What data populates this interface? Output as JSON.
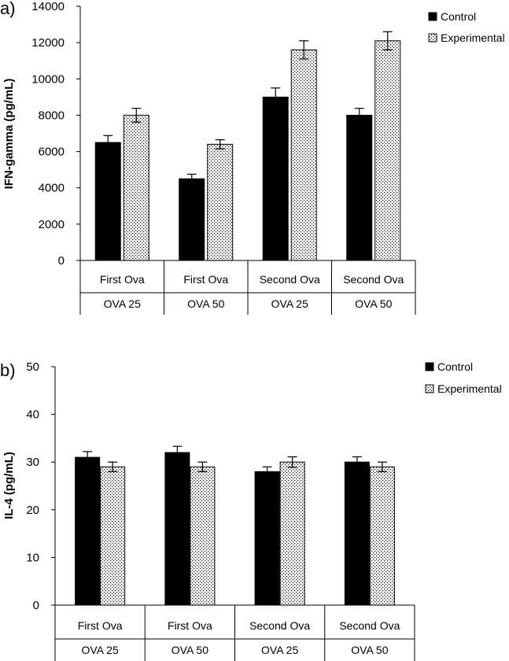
{
  "chart_data": [
    {
      "type": "bar",
      "panel_label": "a)",
      "ylabel": "IFN-gamma (pg/mL)",
      "ylim": [
        0,
        14000
      ],
      "yticks": [
        0,
        2000,
        4000,
        6000,
        8000,
        10000,
        12000,
        14000
      ],
      "categories": [
        [
          "First Ova",
          "OVA 25"
        ],
        [
          "First Ova",
          "OVA 50"
        ],
        [
          "Second Ova",
          "OVA 25"
        ],
        [
          "Second Ova",
          "OVA 50"
        ]
      ],
      "series": [
        {
          "name": "Control",
          "values": [
            6500,
            4500,
            9000,
            8000
          ],
          "errors": [
            380,
            250,
            500,
            380
          ],
          "fill": "#000000"
        },
        {
          "name": "Experimental",
          "values": [
            8000,
            6400,
            11600,
            12100
          ],
          "errors": [
            380,
            250,
            500,
            500
          ],
          "fill": "dotted"
        }
      ],
      "legend_position": "top-right",
      "grid": false
    },
    {
      "type": "bar",
      "panel_label": "b)",
      "ylabel": "IL-4 (pg/mL)",
      "ylim": [
        0,
        50
      ],
      "yticks": [
        0,
        10,
        20,
        30,
        40,
        50
      ],
      "categories": [
        [
          "First Ova",
          "OVA 25"
        ],
        [
          "First Ova",
          "OVA 50"
        ],
        [
          "Second Ova",
          "OVA 25"
        ],
        [
          "Second Ova",
          "OVA 50"
        ]
      ],
      "series": [
        {
          "name": "Control",
          "values": [
            31,
            32,
            28,
            30
          ],
          "errors": [
            1.2,
            1.3,
            1.0,
            1.1
          ],
          "fill": "#000000"
        },
        {
          "name": "Experimental",
          "values": [
            29,
            29,
            30,
            29
          ],
          "errors": [
            1.0,
            1.0,
            1.1,
            1.0
          ],
          "fill": "dotted"
        }
      ],
      "legend_position": "top-right",
      "grid": false
    }
  ]
}
